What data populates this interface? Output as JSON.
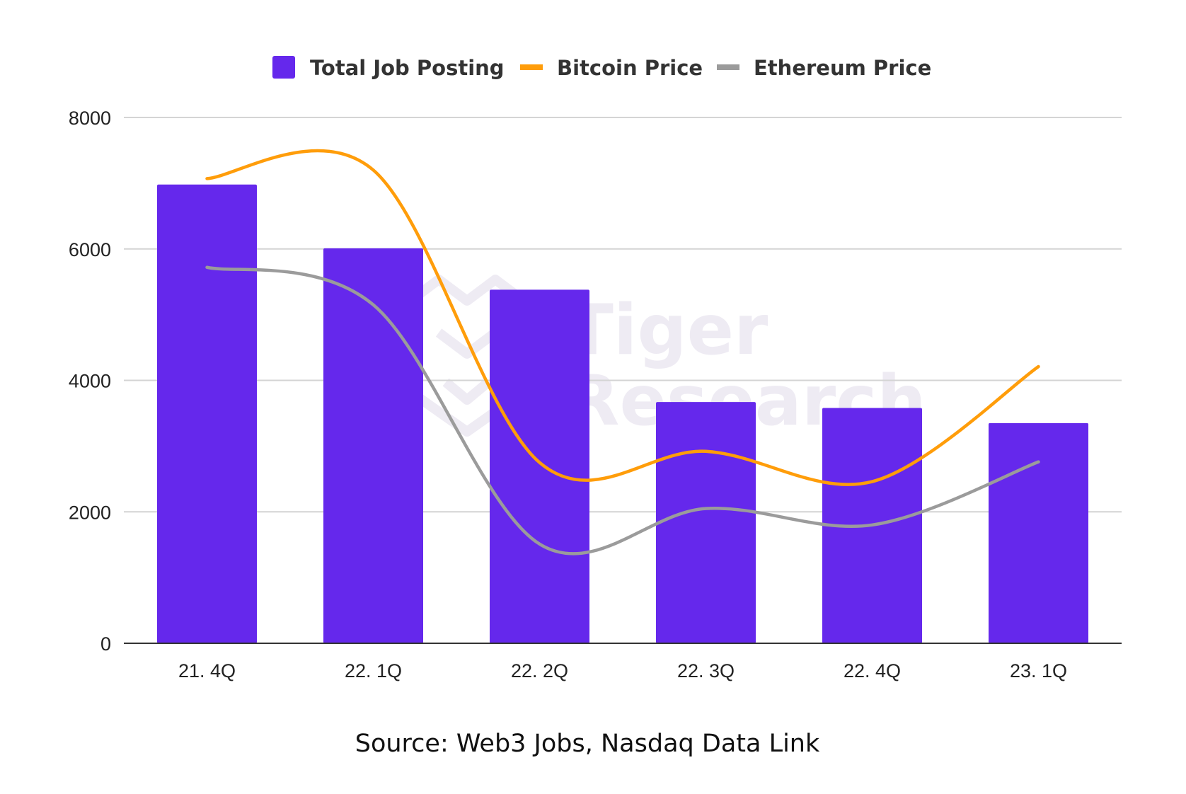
{
  "chart_data": {
    "type": "bar",
    "categories": [
      "21. 4Q",
      "22. 1Q",
      "22. 2Q",
      "22. 3Q",
      "22. 4Q",
      "23. 1Q"
    ],
    "series": [
      {
        "name": "Total Job Posting",
        "type": "bar",
        "color": "#6528ec",
        "values": [
          6980,
          6010,
          5380,
          3670,
          3580,
          3350
        ]
      },
      {
        "name": "Bitcoin Price",
        "type": "line",
        "color": "#ff9d0a",
        "values": [
          7070,
          7200,
          2750,
          2920,
          2460,
          4210
        ]
      },
      {
        "name": "Ethereum Price",
        "type": "line",
        "color": "#9b9b9b",
        "values": [
          5720,
          5150,
          1510,
          2050,
          1800,
          2760
        ]
      }
    ],
    "ylim": [
      0,
      8000
    ],
    "yticks": [
      0,
      2000,
      4000,
      6000,
      8000
    ],
    "grid": true,
    "legend_position": "top-center",
    "source": "Source: Web3 Jobs, Nasdaq Data Link",
    "watermark": [
      "Tiger",
      "Research"
    ]
  }
}
